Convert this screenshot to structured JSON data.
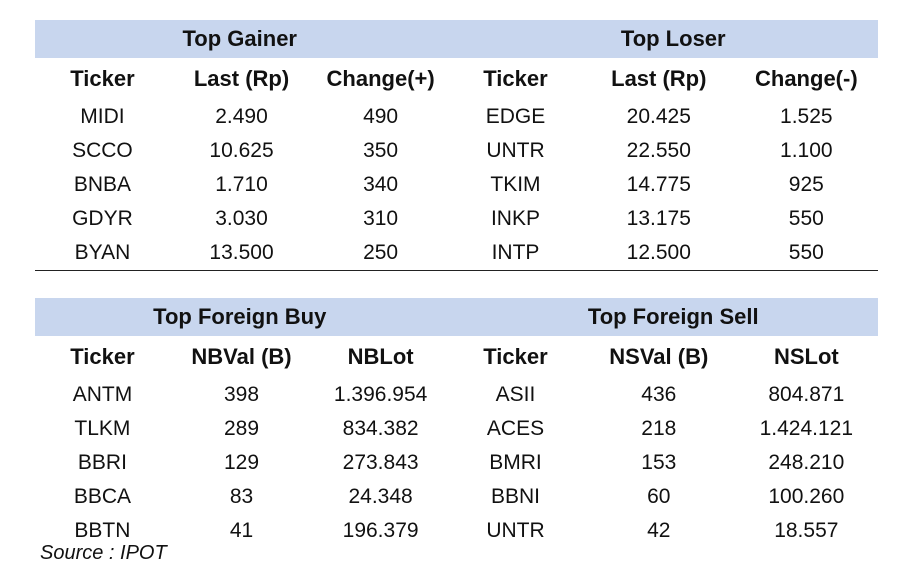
{
  "top_section": {
    "gainer_title": "Top Gainer",
    "loser_title": "Top Loser",
    "headers": [
      "Ticker",
      "Last (Rp)",
      "Change(+)",
      "Ticker",
      "Last (Rp)",
      "Change(-)"
    ],
    "rows": [
      [
        "MIDI",
        "2.490",
        "490",
        "EDGE",
        "20.425",
        "1.525"
      ],
      [
        "SCCO",
        "10.625",
        "350",
        "UNTR",
        "22.550",
        "1.100"
      ],
      [
        "BNBA",
        "1.710",
        "340",
        "TKIM",
        "14.775",
        "925"
      ],
      [
        "GDYR",
        "3.030",
        "310",
        "INKP",
        "13.175",
        "550"
      ],
      [
        "BYAN",
        "13.500",
        "250",
        "INTP",
        "12.500",
        "550"
      ]
    ]
  },
  "bottom_section": {
    "buy_title": "Top Foreign Buy",
    "sell_title": "Top Foreign Sell",
    "headers": [
      "Ticker",
      "NBVal (B)",
      "NBLot",
      "Ticker",
      "NSVal (B)",
      "NSLot"
    ],
    "rows": [
      [
        "ANTM",
        "398",
        "1.396.954",
        "ASII",
        "436",
        "804.871"
      ],
      [
        "TLKM",
        "289",
        "834.382",
        "ACES",
        "218",
        "1.424.121"
      ],
      [
        "BBRI",
        "129",
        "273.843",
        "BMRI",
        "153",
        "248.210"
      ],
      [
        "BBCA",
        "83",
        "24.348",
        "BBNI",
        "60",
        "100.260"
      ],
      [
        "BBTN",
        "41",
        "196.379",
        "UNTR",
        "42",
        "18.557"
      ]
    ]
  },
  "source": "Source : IPOT",
  "colors": {
    "header_band": "#c8d6ee"
  }
}
